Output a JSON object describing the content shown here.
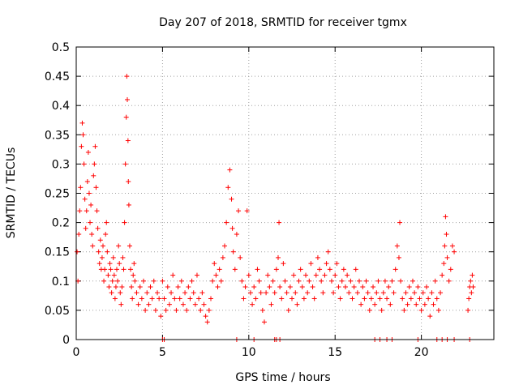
{
  "chart_data": {
    "type": "scatter",
    "title": "Day 207 of 2018, SRMTID for receiver tgmx",
    "xlabel": "GPS time / hours",
    "ylabel": "SRMTID / TECUs",
    "xlim": [
      0,
      24.2
    ],
    "ylim": [
      0,
      0.5
    ],
    "xticks": [
      0,
      5,
      10,
      15,
      20
    ],
    "yticks": [
      0,
      0.05,
      0.1,
      0.15,
      0.2,
      0.25,
      0.3,
      0.35,
      0.4,
      0.45,
      0.5
    ],
    "grid": true,
    "marker": "plus",
    "color": "#ff0000",
    "series": [
      {
        "name": "SRMTID",
        "points": [
          [
            0.05,
            0.15
          ],
          [
            0.1,
            0.1
          ],
          [
            0.15,
            0.18
          ],
          [
            0.2,
            0.22
          ],
          [
            0.25,
            0.26
          ],
          [
            0.3,
            0.33
          ],
          [
            0.35,
            0.37
          ],
          [
            0.4,
            0.35
          ],
          [
            0.45,
            0.3
          ],
          [
            0.5,
            0.24
          ],
          [
            0.55,
            0.19
          ],
          [
            0.6,
            0.22
          ],
          [
            0.65,
            0.27
          ],
          [
            0.7,
            0.32
          ],
          [
            0.75,
            0.25
          ],
          [
            0.8,
            0.2
          ],
          [
            0.85,
            0.23
          ],
          [
            0.9,
            0.18
          ],
          [
            0.95,
            0.16
          ],
          [
            1.0,
            0.28
          ],
          [
            1.05,
            0.3
          ],
          [
            1.1,
            0.33
          ],
          [
            1.15,
            0.26
          ],
          [
            1.2,
            0.22
          ],
          [
            1.25,
            0.19
          ],
          [
            1.3,
            0.15
          ],
          [
            1.35,
            0.13
          ],
          [
            1.4,
            0.17
          ],
          [
            1.45,
            0.12
          ],
          [
            1.5,
            0.14
          ],
          [
            1.55,
            0.16
          ],
          [
            1.6,
            0.1
          ],
          [
            1.65,
            0.12
          ],
          [
            1.7,
            0.18
          ],
          [
            1.75,
            0.2
          ],
          [
            1.8,
            0.15
          ],
          [
            1.85,
            0.11
          ],
          [
            1.9,
            0.09
          ],
          [
            1.95,
            0.13
          ],
          [
            2.0,
            0.12
          ],
          [
            2.05,
            0.08
          ],
          [
            2.1,
            0.1
          ],
          [
            2.15,
            0.14
          ],
          [
            2.2,
            0.11
          ],
          [
            2.25,
            0.07
          ],
          [
            2.3,
            0.09
          ],
          [
            2.35,
            0.12
          ],
          [
            2.4,
            0.1
          ],
          [
            2.45,
            0.16
          ],
          [
            2.5,
            0.13
          ],
          [
            2.55,
            0.08
          ],
          [
            2.6,
            0.06
          ],
          [
            2.65,
            0.09
          ],
          [
            2.7,
            0.14
          ],
          [
            2.75,
            0.12
          ],
          [
            2.8,
            0.2
          ],
          [
            2.85,
            0.3
          ],
          [
            2.9,
            0.38
          ],
          [
            2.93,
            0.45
          ],
          [
            2.96,
            0.41
          ],
          [
            3.0,
            0.34
          ],
          [
            3.02,
            0.27
          ],
          [
            3.05,
            0.23
          ],
          [
            3.1,
            0.16
          ],
          [
            3.15,
            0.12
          ],
          [
            3.2,
            0.09
          ],
          [
            3.25,
            0.07
          ],
          [
            3.3,
            0.11
          ],
          [
            3.35,
            0.13
          ],
          [
            3.4,
            0.1
          ],
          [
            3.5,
            0.08
          ],
          [
            3.6,
            0.06
          ],
          [
            3.7,
            0.09
          ],
          [
            3.8,
            0.07
          ],
          [
            3.9,
            0.1
          ],
          [
            4.0,
            0.05
          ],
          [
            4.1,
            0.08
          ],
          [
            4.2,
            0.06
          ],
          [
            4.3,
            0.09
          ],
          [
            4.4,
            0.07
          ],
          [
            4.5,
            0.1
          ],
          [
            4.6,
            0.05
          ],
          [
            4.7,
            0.08
          ],
          [
            4.8,
            0.07
          ],
          [
            4.9,
            0.04
          ],
          [
            5.0,
            0.1
          ],
          [
            5.1,
            0.07
          ],
          [
            5.2,
            0.05
          ],
          [
            5.3,
            0.09
          ],
          [
            5.4,
            0.06
          ],
          [
            5.5,
            0.08
          ],
          [
            5.6,
            0.11
          ],
          [
            5.7,
            0.07
          ],
          [
            5.8,
            0.05
          ],
          [
            5.9,
            0.09
          ],
          [
            6.0,
            0.07
          ],
          [
            6.1,
            0.1
          ],
          [
            6.2,
            0.06
          ],
          [
            6.3,
            0.08
          ],
          [
            6.4,
            0.05
          ],
          [
            6.5,
            0.09
          ],
          [
            6.6,
            0.07
          ],
          [
            6.7,
            0.1
          ],
          [
            6.8,
            0.08
          ],
          [
            6.9,
            0.06
          ],
          [
            7.0,
            0.11
          ],
          [
            7.1,
            0.07
          ],
          [
            7.2,
            0.05
          ],
          [
            7.3,
            0.08
          ],
          [
            7.4,
            0.06
          ],
          [
            7.5,
            0.04
          ],
          [
            7.6,
            0.03
          ],
          [
            7.7,
            0.05
          ],
          [
            7.8,
            0.07
          ],
          [
            7.9,
            0.1
          ],
          [
            8.0,
            0.13
          ],
          [
            8.1,
            0.11
          ],
          [
            8.2,
            0.09
          ],
          [
            8.3,
            0.12
          ],
          [
            8.4,
            0.1
          ],
          [
            8.5,
            0.14
          ],
          [
            8.6,
            0.16
          ],
          [
            8.7,
            0.2
          ],
          [
            8.8,
            0.26
          ],
          [
            8.9,
            0.29
          ],
          [
            9.0,
            0.24
          ],
          [
            9.05,
            0.19
          ],
          [
            9.1,
            0.15
          ],
          [
            9.2,
            0.12
          ],
          [
            9.3,
            0.18
          ],
          [
            9.4,
            0.22
          ],
          [
            9.5,
            0.14
          ],
          [
            9.6,
            0.1
          ],
          [
            9.7,
            0.07
          ],
          [
            9.8,
            0.09
          ],
          [
            9.9,
            0.22
          ],
          [
            10.0,
            0.11
          ],
          [
            10.1,
            0.08
          ],
          [
            10.2,
            0.06
          ],
          [
            10.3,
            0.09
          ],
          [
            10.4,
            0.07
          ],
          [
            10.5,
            0.12
          ],
          [
            10.6,
            0.1
          ],
          [
            10.7,
            0.08
          ],
          [
            10.8,
            0.05
          ],
          [
            10.9,
            0.03
          ],
          [
            11.0,
            0.08
          ],
          [
            11.1,
            0.11
          ],
          [
            11.2,
            0.09
          ],
          [
            11.3,
            0.06
          ],
          [
            11.4,
            0.1
          ],
          [
            11.5,
            0.08
          ],
          [
            11.6,
            0.12
          ],
          [
            11.7,
            0.14
          ],
          [
            11.75,
            0.2
          ],
          [
            11.8,
            0.09
          ],
          [
            11.9,
            0.07
          ],
          [
            12.0,
            0.13
          ],
          [
            12.1,
            0.1
          ],
          [
            12.2,
            0.08
          ],
          [
            12.3,
            0.05
          ],
          [
            12.4,
            0.09
          ],
          [
            12.5,
            0.07
          ],
          [
            12.6,
            0.11
          ],
          [
            12.7,
            0.08
          ],
          [
            12.8,
            0.06
          ],
          [
            12.9,
            0.1
          ],
          [
            13.0,
            0.12
          ],
          [
            13.1,
            0.09
          ],
          [
            13.2,
            0.07
          ],
          [
            13.3,
            0.11
          ],
          [
            13.4,
            0.08
          ],
          [
            13.5,
            0.1
          ],
          [
            13.6,
            0.13
          ],
          [
            13.7,
            0.09
          ],
          [
            13.8,
            0.07
          ],
          [
            13.9,
            0.11
          ],
          [
            14.0,
            0.14
          ],
          [
            14.1,
            0.12
          ],
          [
            14.2,
            0.1
          ],
          [
            14.3,
            0.08
          ],
          [
            14.4,
            0.11
          ],
          [
            14.5,
            0.13
          ],
          [
            14.6,
            0.15
          ],
          [
            14.7,
            0.12
          ],
          [
            14.8,
            0.1
          ],
          [
            14.9,
            0.08
          ],
          [
            15.0,
            0.11
          ],
          [
            15.1,
            0.13
          ],
          [
            15.2,
            0.09
          ],
          [
            15.3,
            0.07
          ],
          [
            15.4,
            0.1
          ],
          [
            15.5,
            0.12
          ],
          [
            15.6,
            0.09
          ],
          [
            15.7,
            0.11
          ],
          [
            15.8,
            0.08
          ],
          [
            15.9,
            0.1
          ],
          [
            16.0,
            0.07
          ],
          [
            16.1,
            0.09
          ],
          [
            16.2,
            0.12
          ],
          [
            16.3,
            0.08
          ],
          [
            16.4,
            0.1
          ],
          [
            16.5,
            0.06
          ],
          [
            16.6,
            0.09
          ],
          [
            16.7,
            0.07
          ],
          [
            16.8,
            0.1
          ],
          [
            16.9,
            0.08
          ],
          [
            17.0,
            0.05
          ],
          [
            17.1,
            0.07
          ],
          [
            17.2,
            0.09
          ],
          [
            17.3,
            0.06
          ],
          [
            17.4,
            0.08
          ],
          [
            17.5,
            0.1
          ],
          [
            17.6,
            0.07
          ],
          [
            17.7,
            0.05
          ],
          [
            17.8,
            0.08
          ],
          [
            17.9,
            0.1
          ],
          [
            18.0,
            0.07
          ],
          [
            18.1,
            0.09
          ],
          [
            18.2,
            0.06
          ],
          [
            18.3,
            0.1
          ],
          [
            18.4,
            0.08
          ],
          [
            18.5,
            0.12
          ],
          [
            18.6,
            0.16
          ],
          [
            18.7,
            0.14
          ],
          [
            18.75,
            0.2
          ],
          [
            18.8,
            0.1
          ],
          [
            18.9,
            0.07
          ],
          [
            19.0,
            0.05
          ],
          [
            19.1,
            0.08
          ],
          [
            19.2,
            0.06
          ],
          [
            19.3,
            0.09
          ],
          [
            19.4,
            0.07
          ],
          [
            19.5,
            0.1
          ],
          [
            19.6,
            0.08
          ],
          [
            19.7,
            0.06
          ],
          [
            19.8,
            0.09
          ],
          [
            19.9,
            0.07
          ],
          [
            20.0,
            0.05
          ],
          [
            20.1,
            0.08
          ],
          [
            20.2,
            0.06
          ],
          [
            20.3,
            0.09
          ],
          [
            20.4,
            0.07
          ],
          [
            20.5,
            0.04
          ],
          [
            20.6,
            0.08
          ],
          [
            20.7,
            0.06
          ],
          [
            20.8,
            0.1
          ],
          [
            20.9,
            0.07
          ],
          [
            21.0,
            0.05
          ],
          [
            21.1,
            0.08
          ],
          [
            21.2,
            0.11
          ],
          [
            21.3,
            0.13
          ],
          [
            21.35,
            0.16
          ],
          [
            21.4,
            0.21
          ],
          [
            21.45,
            0.18
          ],
          [
            21.5,
            0.14
          ],
          [
            21.6,
            0.1
          ],
          [
            21.7,
            0.12
          ],
          [
            21.8,
            0.16
          ],
          [
            21.9,
            0.15
          ],
          [
            22.7,
            0.05
          ],
          [
            22.75,
            0.07
          ],
          [
            22.8,
            0.09
          ],
          [
            22.85,
            0.1
          ],
          [
            22.9,
            0.08
          ],
          [
            22.95,
            0.11
          ],
          [
            23.0,
            0.09
          ],
          [
            5.0,
            0
          ],
          [
            5.1,
            0
          ],
          [
            9.3,
            0
          ],
          [
            10.3,
            0
          ],
          [
            11.5,
            0
          ],
          [
            11.6,
            0
          ],
          [
            11.8,
            0
          ],
          [
            17.3,
            0
          ],
          [
            17.6,
            0
          ],
          [
            18.0,
            0
          ],
          [
            18.3,
            0
          ],
          [
            19.8,
            0
          ],
          [
            20.9,
            0
          ],
          [
            21.2,
            0
          ],
          [
            21.5,
            0
          ],
          [
            21.9,
            0
          ],
          [
            22.8,
            0
          ]
        ]
      }
    ]
  }
}
